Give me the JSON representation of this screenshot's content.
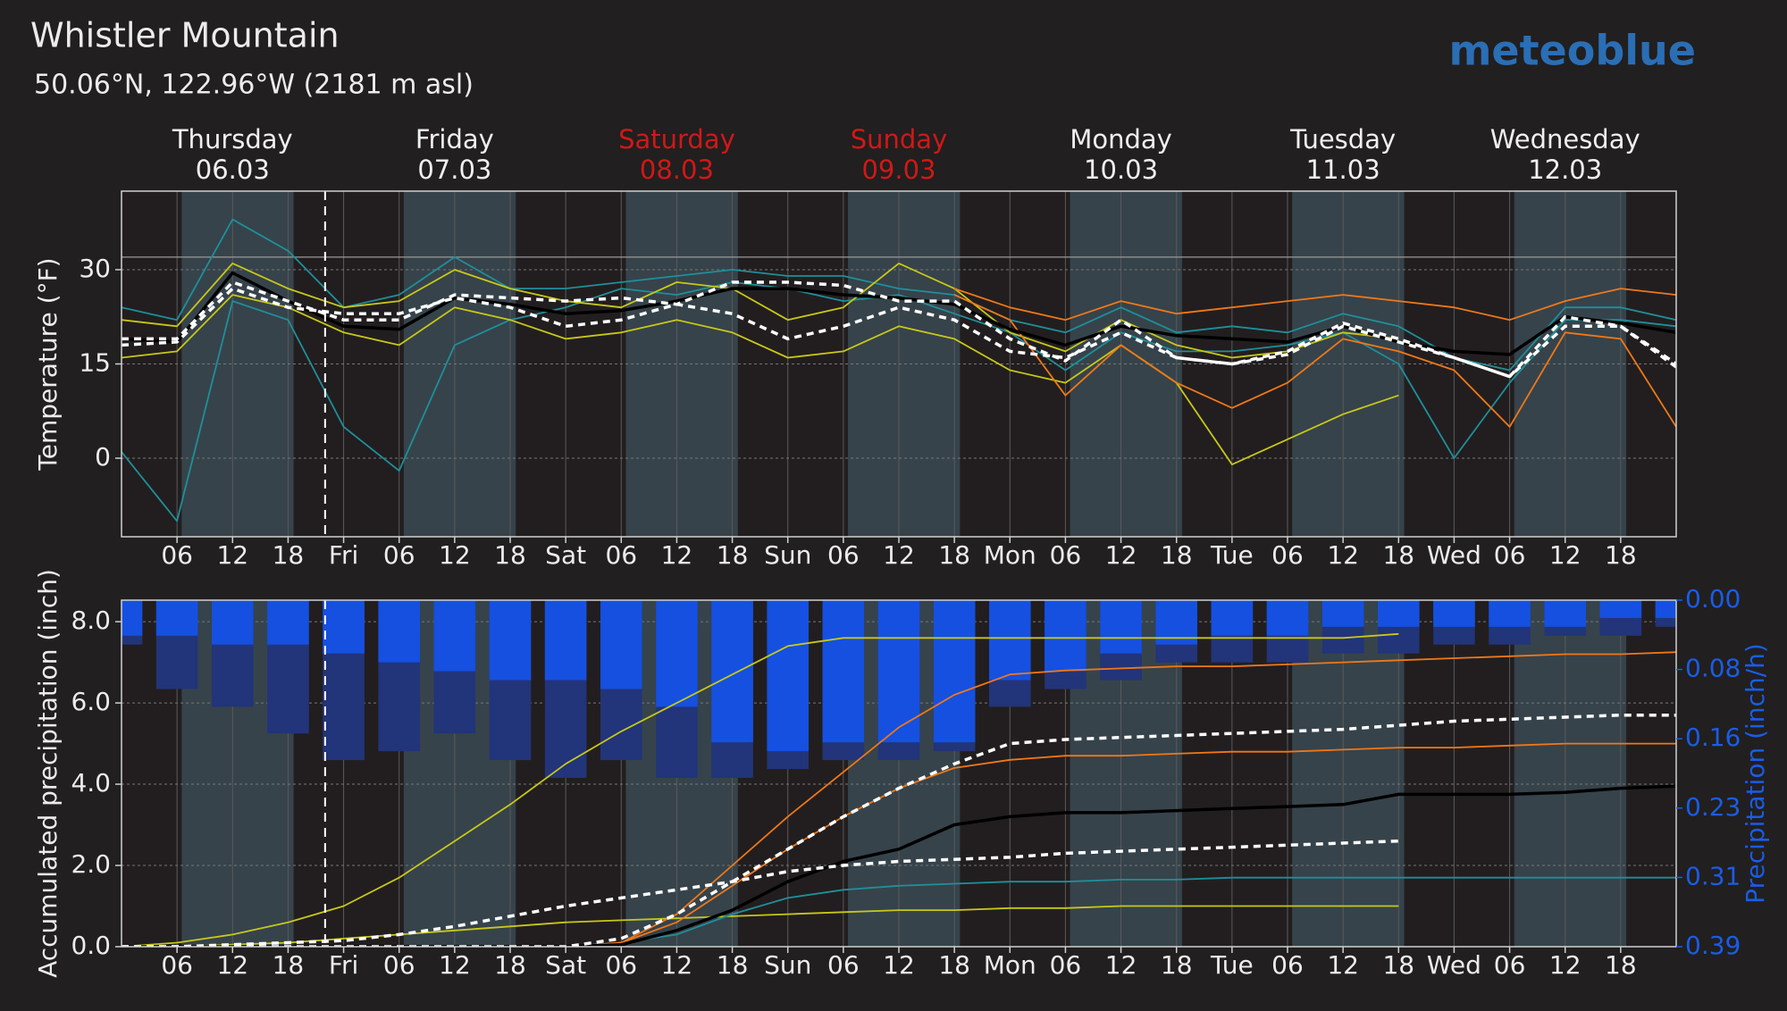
{
  "title": "Whistler Mountain",
  "subtitle": "50.06°N, 122.96°W (2181 m asl)",
  "logo": "meteoblue",
  "days": [
    {
      "name": "Thursday",
      "date": "06.03",
      "color": "#f0f0f0"
    },
    {
      "name": "Friday",
      "date": "07.03",
      "color": "#f0f0f0"
    },
    {
      "name": "Saturday",
      "date": "08.03",
      "color": "#d01818"
    },
    {
      "name": "Sunday",
      "date": "09.03",
      "color": "#d01818"
    },
    {
      "name": "Monday",
      "date": "10.03",
      "color": "#f0f0f0"
    },
    {
      "name": "Tuesday",
      "date": "11.03",
      "color": "#f0f0f0"
    },
    {
      "name": "Wednesday",
      "date": "12.03",
      "color": "#f0f0f0"
    }
  ],
  "chart_data": [
    {
      "type": "line",
      "ylabel": "Temperature (°F)",
      "xlim": [
        0,
        168
      ],
      "ylim": [
        -12.5,
        42.5
      ],
      "yticks": [
        0,
        15,
        30
      ],
      "reference_line": 32,
      "now": 22,
      "grid": true,
      "daylight": [
        [
          6.5,
          18.6
        ],
        [
          30.5,
          42.6
        ],
        [
          54.5,
          66.6
        ],
        [
          78.5,
          90.6
        ],
        [
          102.5,
          114.6
        ],
        [
          126.5,
          138.6
        ],
        [
          150.5,
          162.6
        ]
      ],
      "xticks": [
        {
          "value": 6,
          "label": "06"
        },
        {
          "value": 12,
          "label": "12"
        },
        {
          "value": 18,
          "label": "18"
        },
        {
          "value": 24,
          "label": "Fri"
        },
        {
          "value": 30,
          "label": "06"
        },
        {
          "value": 36,
          "label": "12"
        },
        {
          "value": 42,
          "label": "18"
        },
        {
          "value": 48,
          "label": "Sat"
        },
        {
          "value": 54,
          "label": "06"
        },
        {
          "value": 60,
          "label": "12"
        },
        {
          "value": 66,
          "label": "18"
        },
        {
          "value": 72,
          "label": "Sun"
        },
        {
          "value": 78,
          "label": "06"
        },
        {
          "value": 84,
          "label": "12"
        },
        {
          "value": 90,
          "label": "18"
        },
        {
          "value": 96,
          "label": "Mon"
        },
        {
          "value": 102,
          "label": "06"
        },
        {
          "value": 108,
          "label": "12"
        },
        {
          "value": 114,
          "label": "18"
        },
        {
          "value": 120,
          "label": "Tue"
        },
        {
          "value": 126,
          "label": "06"
        },
        {
          "value": 132,
          "label": "12"
        },
        {
          "value": 138,
          "label": "18"
        },
        {
          "value": 144,
          "label": "Wed"
        },
        {
          "value": 150,
          "label": "06"
        },
        {
          "value": 156,
          "label": "12"
        },
        {
          "value": 162,
          "label": "18"
        }
      ],
      "x": [
        0,
        6,
        12,
        18,
        24,
        30,
        36,
        42,
        48,
        54,
        60,
        66,
        72,
        78,
        84,
        90,
        96,
        102,
        108,
        114,
        120,
        126,
        132,
        138,
        144,
        150,
        156,
        162,
        168
      ],
      "series": [
        {
          "color": "#1f8f9a",
          "values": [
            1,
            -10,
            25,
            22,
            5,
            -2,
            18,
            22,
            24,
            27,
            26,
            28,
            27,
            25,
            26,
            23,
            20,
            14,
            20,
            17,
            17,
            18,
            20,
            15,
            0,
            12,
            22,
            22,
            21
          ]
        },
        {
          "color": "#1f8f9a",
          "values": [
            24,
            22,
            38,
            33,
            24,
            26,
            32,
            27,
            27,
            28,
            29,
            30,
            29,
            29,
            27,
            26,
            22,
            20,
            24,
            20,
            21,
            20,
            23,
            21,
            16,
            14,
            24,
            24,
            22
          ]
        },
        {
          "color": "#c8c818",
          "values": [
            16,
            17,
            26,
            24,
            20,
            18,
            24,
            22,
            19,
            20,
            22,
            20,
            16,
            17,
            21,
            19,
            14,
            12,
            18,
            12,
            -1,
            3,
            7,
            10,
            null,
            null,
            null,
            null,
            null
          ]
        },
        {
          "color": "#c8c818",
          "values": [
            22,
            21,
            31,
            27,
            24,
            25,
            30,
            27,
            25,
            24,
            28,
            27,
            22,
            24,
            31,
            27,
            20,
            17,
            22,
            18,
            16,
            17,
            20,
            19,
            null,
            null,
            null,
            null,
            null
          ]
        },
        {
          "color": "#f07818",
          "values": [
            null,
            null,
            null,
            null,
            null,
            null,
            null,
            null,
            null,
            null,
            null,
            null,
            null,
            null,
            null,
            26,
            22,
            10,
            18,
            12,
            8,
            12,
            19,
            17,
            14,
            5,
            20,
            19,
            5
          ]
        },
        {
          "color": "#f07818",
          "values": [
            null,
            null,
            null,
            null,
            null,
            null,
            null,
            null,
            null,
            null,
            null,
            null,
            null,
            null,
            null,
            27,
            24,
            22,
            25,
            23,
            24,
            25,
            26,
            25,
            24,
            22,
            25,
            27,
            26
          ]
        },
        {
          "color": "#000000",
          "values": [
            19,
            18.5,
            29.5,
            25,
            21,
            20.5,
            25.5,
            24.5,
            23,
            23.5,
            25,
            27,
            27,
            26,
            25.5,
            24.5,
            20.5,
            18,
            21,
            19.5,
            19,
            18.5,
            21,
            18.5,
            17,
            16.5,
            22.5,
            21.5,
            20
          ]
        },
        {
          "color": "#ffffff",
          "dashed": true,
          "values": [
            19,
            19,
            28,
            25,
            22,
            22,
            26,
            25.5,
            25,
            25.5,
            24.5,
            28,
            28,
            27.5,
            25,
            25,
            19,
            15.5,
            22,
            16,
            15,
            17,
            21.5,
            19,
            16,
            13,
            22.5,
            21,
            14.5
          ]
        },
        {
          "color": "#ffffff",
          "dashed": true,
          "values": [
            18,
            18.5,
            27,
            24,
            23,
            23,
            25.5,
            24,
            21,
            22,
            24.5,
            23,
            19,
            21,
            24,
            22,
            17,
            16,
            20,
            16,
            15,
            16.5,
            21,
            18.5,
            16,
            13,
            21,
            21,
            15
          ]
        }
      ]
    },
    {
      "type": "line",
      "ylabel": "Accumulated precipitation (inch)",
      "y2label": "Precipitation (inch/h)",
      "y2color": "#1a5ce6",
      "xlim": [
        0,
        168
      ],
      "ylim": [
        0,
        8.53
      ],
      "yticks": [
        {
          "value": 0,
          "label": "0.0"
        },
        {
          "value": 2,
          "label": "2.0"
        },
        {
          "value": 4,
          "label": "4.0"
        },
        {
          "value": 6,
          "label": "6.0"
        },
        {
          "value": 8,
          "label": "8.0"
        }
      ],
      "y2lim": [
        0,
        0.39
      ],
      "y2_inverted": true,
      "y2ticks": [
        {
          "value": 0,
          "label": "0.00"
        },
        {
          "value": 0.078,
          "label": "0.08"
        },
        {
          "value": 0.156,
          "label": "0.16"
        },
        {
          "value": 0.234,
          "label": "0.23"
        },
        {
          "value": 0.312,
          "label": "0.31"
        },
        {
          "value": 0.39,
          "label": "0.39"
        }
      ],
      "now": 22,
      "grid": true,
      "daylight": [
        [
          6.5,
          18.6
        ],
        [
          30.5,
          42.6
        ],
        [
          54.5,
          66.6
        ],
        [
          78.5,
          90.6
        ],
        [
          102.5,
          114.6
        ],
        [
          126.5,
          138.6
        ],
        [
          150.5,
          162.6
        ]
      ],
      "xticks": [
        {
          "value": 6,
          "label": "06"
        },
        {
          "value": 12,
          "label": "12"
        },
        {
          "value": 18,
          "label": "18"
        },
        {
          "value": 24,
          "label": "Fri"
        },
        {
          "value": 30,
          "label": "06"
        },
        {
          "value": 36,
          "label": "12"
        },
        {
          "value": 42,
          "label": "18"
        },
        {
          "value": 48,
          "label": "Sat"
        },
        {
          "value": 54,
          "label": "06"
        },
        {
          "value": 60,
          "label": "12"
        },
        {
          "value": 66,
          "label": "18"
        },
        {
          "value": 72,
          "label": "Sun"
        },
        {
          "value": 78,
          "label": "06"
        },
        {
          "value": 84,
          "label": "12"
        },
        {
          "value": 90,
          "label": "18"
        },
        {
          "value": 96,
          "label": "Mon"
        },
        {
          "value": 102,
          "label": "06"
        },
        {
          "value": 108,
          "label": "12"
        },
        {
          "value": 114,
          "label": "18"
        },
        {
          "value": 120,
          "label": "Tue"
        },
        {
          "value": 126,
          "label": "06"
        },
        {
          "value": 132,
          "label": "12"
        },
        {
          "value": 138,
          "label": "18"
        },
        {
          "value": 144,
          "label": "Wed"
        },
        {
          "value": 150,
          "label": "06"
        },
        {
          "value": 156,
          "label": "12"
        },
        {
          "value": 162,
          "label": "18"
        }
      ],
      "x": [
        0,
        6,
        12,
        18,
        24,
        30,
        36,
        42,
        48,
        54,
        60,
        66,
        72,
        78,
        84,
        90,
        96,
        102,
        108,
        114,
        120,
        126,
        132,
        138,
        144,
        150,
        156,
        162,
        168
      ],
      "series": [
        {
          "type": "bar",
          "axis": "y2",
          "color": "#22347a",
          "values": [
            0.05,
            0.1,
            0.12,
            0.15,
            0.18,
            0.17,
            0.15,
            0.18,
            0.2,
            0.18,
            0.2,
            0.2,
            0.19,
            0.18,
            0.18,
            0.17,
            0.12,
            0.1,
            0.09,
            0.07,
            0.07,
            0.07,
            0.06,
            0.06,
            0.05,
            0.05,
            0.04,
            0.04,
            0.03
          ]
        },
        {
          "type": "bar",
          "axis": "y2",
          "color": "#1550e0",
          "values": [
            0.04,
            0.04,
            0.05,
            0.05,
            0.06,
            0.07,
            0.08,
            0.09,
            0.09,
            0.1,
            0.12,
            0.16,
            0.17,
            0.16,
            0.16,
            0.16,
            0.09,
            0.08,
            0.06,
            0.05,
            0.04,
            0.04,
            0.03,
            0.03,
            0.03,
            0.03,
            0.03,
            0.02,
            0.02
          ]
        },
        {
          "color": "#c8c818",
          "values": [
            0,
            0.1,
            0.3,
            0.6,
            1,
            1.7,
            2.6,
            3.5,
            4.5,
            5.3,
            6,
            6.7,
            7.4,
            7.6,
            7.6,
            7.6,
            7.6,
            7.6,
            7.6,
            7.6,
            7.6,
            7.6,
            7.6,
            7.7,
            null,
            null,
            null,
            null,
            null
          ]
        },
        {
          "color": "#c8c818",
          "values": [
            0,
            0,
            0.05,
            0.1,
            0.2,
            0.3,
            0.4,
            0.5,
            0.6,
            0.65,
            0.7,
            0.75,
            0.8,
            0.85,
            0.9,
            0.9,
            0.95,
            0.95,
            1.0,
            1.0,
            1.0,
            1.0,
            1.0,
            1.0,
            null,
            null,
            null,
            null,
            null
          ]
        },
        {
          "color": "#1f8f9a",
          "values": [
            0,
            0,
            0,
            0,
            0,
            0,
            0,
            0,
            0,
            0.1,
            0.3,
            0.8,
            1.2,
            1.4,
            1.5,
            1.55,
            1.6,
            1.6,
            1.65,
            1.65,
            1.7,
            1.7,
            1.7,
            1.7,
            1.7,
            1.7,
            1.7,
            1.7,
            1.7
          ]
        },
        {
          "color": "#f07818",
          "values": [
            0,
            0,
            0,
            0,
            0,
            0,
            0,
            0,
            0,
            0.1,
            0.8,
            2,
            3.2,
            4.3,
            5.4,
            6.2,
            6.7,
            6.8,
            6.85,
            6.9,
            6.9,
            6.95,
            7.0,
            7.05,
            7.1,
            7.15,
            7.2,
            7.2,
            7.25
          ]
        },
        {
          "color": "#f07818",
          "values": [
            0,
            0,
            0,
            0,
            0,
            0,
            0,
            0,
            0,
            0.1,
            0.6,
            1.5,
            2.4,
            3.2,
            3.9,
            4.4,
            4.6,
            4.7,
            4.7,
            4.75,
            4.8,
            4.8,
            4.85,
            4.9,
            4.9,
            4.95,
            5.0,
            5.0,
            5.0
          ]
        },
        {
          "color": "#000000",
          "values": [
            0,
            0,
            0,
            0,
            0,
            0,
            0,
            0,
            0,
            0.05,
            0.4,
            0.9,
            1.6,
            2.1,
            2.4,
            3.0,
            3.2,
            3.3,
            3.3,
            3.35,
            3.4,
            3.45,
            3.5,
            3.75,
            3.75,
            3.75,
            3.8,
            3.9,
            3.95
          ]
        },
        {
          "color": "#ffffff",
          "dashed": true,
          "values": [
            0,
            0,
            0,
            0,
            0,
            0,
            0,
            0,
            0,
            0.2,
            0.8,
            1.6,
            2.4,
            3.2,
            3.9,
            4.5,
            5.0,
            5.1,
            5.15,
            5.2,
            5.25,
            5.3,
            5.35,
            5.45,
            5.55,
            5.6,
            5.65,
            5.7,
            5.7
          ]
        },
        {
          "color": "#ffffff",
          "dashed": true,
          "values": [
            0,
            0,
            0.05,
            0.1,
            0.15,
            0.3,
            0.5,
            0.75,
            1.0,
            1.2,
            1.4,
            1.6,
            1.85,
            2.0,
            2.1,
            2.15,
            2.2,
            2.3,
            2.35,
            2.4,
            2.45,
            2.5,
            2.55,
            2.6,
            null,
            null,
            null,
            null,
            null
          ]
        }
      ]
    }
  ]
}
